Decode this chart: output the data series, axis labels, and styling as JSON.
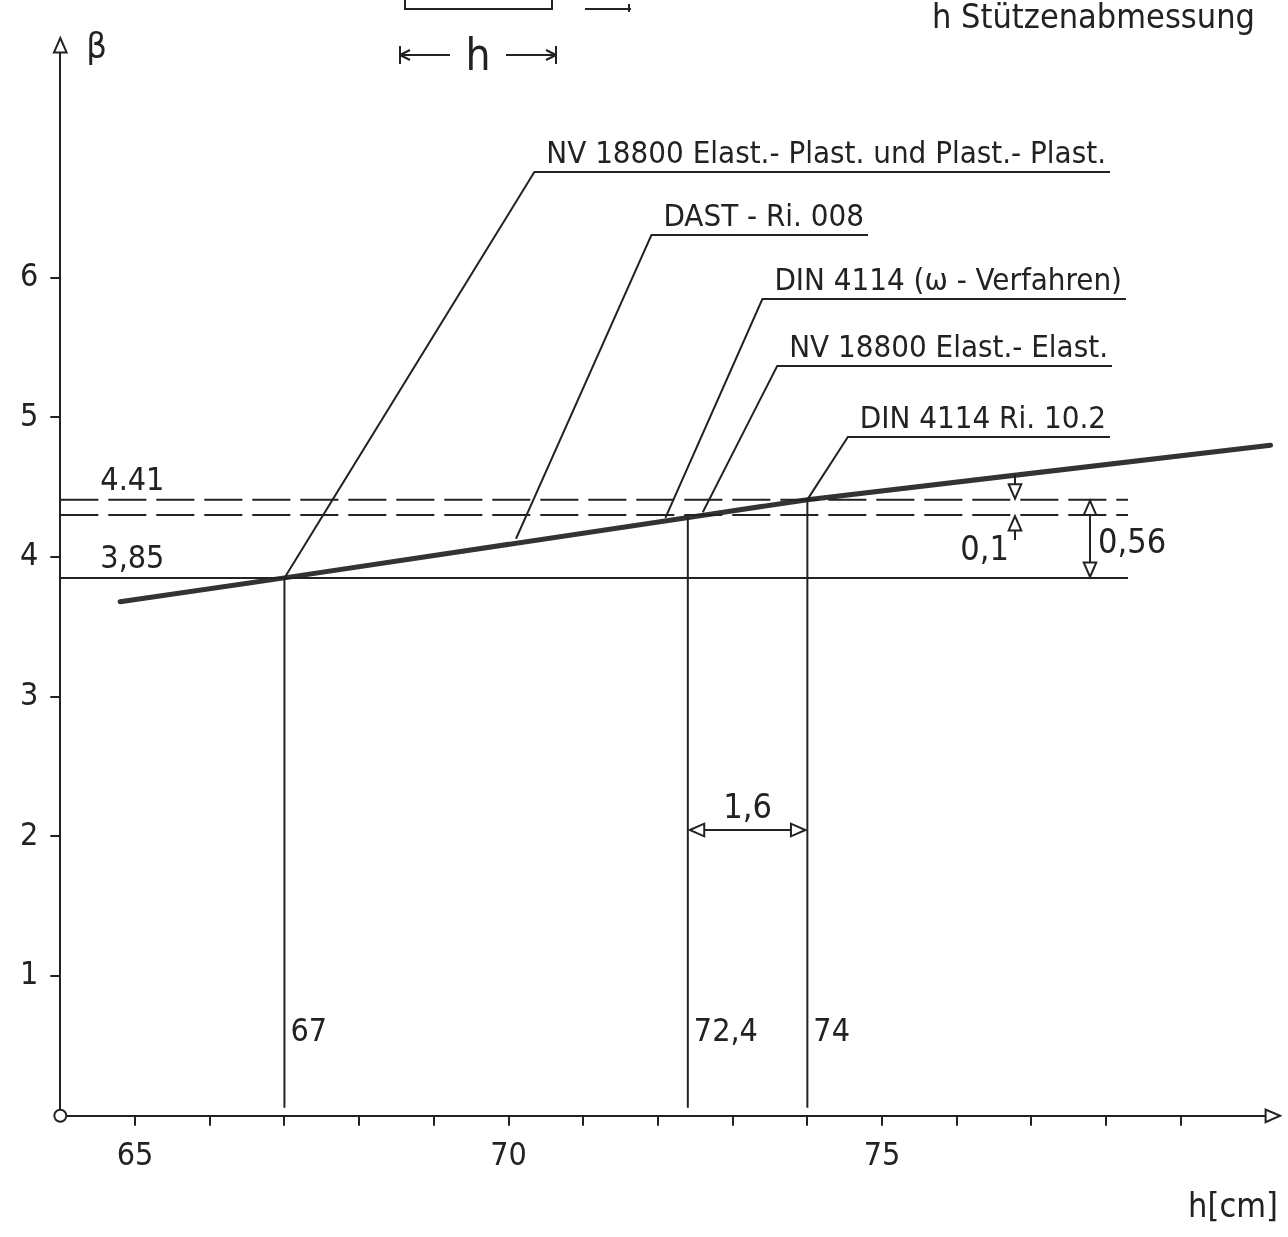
{
  "chart_data": {
    "type": "line",
    "xlabel": "h[cm]",
    "ylabel": "β",
    "x": [
      64.8,
      67,
      74,
      80.2
    ],
    "series": [
      {
        "color": "#333333",
        "values": [
          3.68,
          3.85,
          4.41,
          4.8
        ]
      }
    ],
    "xlim": [
      64,
      80.3
    ],
    "ylim": [
      0,
      7.7
    ],
    "xticks": [
      {
        "value": 65,
        "label": "65"
      },
      {
        "value": 66,
        "label": null
      },
      {
        "value": 67,
        "label": null
      },
      {
        "value": 68,
        "label": null
      },
      {
        "value": 69,
        "label": null
      },
      {
        "value": 70,
        "label": "70"
      },
      {
        "value": 71,
        "label": null
      },
      {
        "value": 72,
        "label": null
      },
      {
        "value": 73,
        "label": null
      },
      {
        "value": 74,
        "label": null
      },
      {
        "value": 75,
        "label": "75"
      },
      {
        "value": 76,
        "label": null
      },
      {
        "value": 77,
        "label": null
      },
      {
        "value": 78,
        "label": null
      },
      {
        "value": 79,
        "label": null
      }
    ],
    "yticks": [
      1,
      2,
      3,
      4,
      5,
      6
    ],
    "marker": "none",
    "grid": false,
    "legend": false,
    "ref_lines": [
      {
        "axis": "y",
        "value": 4.41,
        "label": "4.41",
        "line_style": "dashed"
      },
      {
        "axis": "y",
        "value": 3.85,
        "label": "3,85"
      },
      {
        "axis": "y",
        "value": 4.3,
        "label": null,
        "line_style": "dashed"
      },
      {
        "axis": "x",
        "value": 67,
        "label": "67"
      },
      {
        "axis": "x",
        "value": 72.4,
        "label": "72,4"
      },
      {
        "axis": "x",
        "value": 74,
        "label": "74"
      }
    ],
    "annotations": [
      {
        "text": "NV 18800 Elast.- Plast. und Plast.- Plast.",
        "x": 67,
        "y": 3.85
      },
      {
        "text": "DAST - Ri. 008",
        "x": 70.1,
        "y": 4.13
      },
      {
        "text": "DIN 4114 (ω - Verfahren)",
        "x": 72.1,
        "y": 4.28
      },
      {
        "text": "NV 18800 Elast.- Elast.",
        "x": 72.6,
        "y": 4.32
      },
      {
        "text": "DIN 4114 Ri. 10.2",
        "x": 74,
        "y": 4.41
      },
      "1,6",
      "0,1",
      "0,56",
      "h",
      "h Stützenabmessung"
    ]
  }
}
